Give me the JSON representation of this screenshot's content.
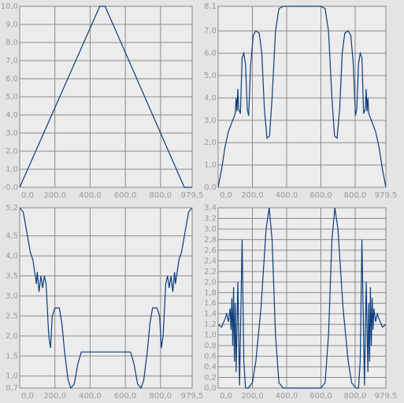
{
  "chart_data": [
    {
      "type": "line",
      "color": "#0b3d7a",
      "grid": true,
      "x": [
        0,
        455,
        485,
        935,
        979.5
      ],
      "values": [
        0,
        10,
        10,
        0,
        0
      ],
      "xlim": [
        0,
        979.5
      ],
      "xticks": [
        {
          "value": 0,
          "label": "0,0"
        },
        {
          "value": 200,
          "label": "200,0"
        },
        {
          "value": 400,
          "label": "400,0"
        },
        {
          "value": 600,
          "label": "600,0"
        },
        {
          "value": 800,
          "label": "800,0"
        },
        {
          "value": 979.5,
          "label": "979,5"
        }
      ],
      "ylim": [
        0,
        10
      ],
      "yticks": [
        {
          "value": 0,
          "label": "-0,0"
        },
        {
          "value": 1,
          "label": "1,0"
        },
        {
          "value": 2,
          "label": "2,0"
        },
        {
          "value": 3,
          "label": "3,0"
        },
        {
          "value": 4,
          "label": "4,0"
        },
        {
          "value": 5,
          "label": "5,0"
        },
        {
          "value": 6,
          "label": "6,0"
        },
        {
          "value": 7,
          "label": "7,0"
        },
        {
          "value": 8,
          "label": "8,0"
        },
        {
          "value": 9,
          "label": "9,0"
        },
        {
          "value": 10,
          "label": "10,0"
        }
      ]
    },
    {
      "type": "line",
      "color": "#0b3d7a",
      "grid": true,
      "x": [
        0,
        20,
        40,
        60,
        85,
        100,
        105,
        110,
        115,
        120,
        130,
        140,
        150,
        160,
        170,
        178,
        190,
        205,
        220,
        240,
        255,
        270,
        285,
        300,
        315,
        335,
        355,
        380,
        599.5,
        624.5,
        644.5,
        664.5,
        679.5,
        694.5,
        709.5,
        724.5,
        739.5,
        759.5,
        774.5,
        789.5,
        801.5,
        809.5,
        819.5,
        829.5,
        839.5,
        849.5,
        859.5,
        864.5,
        869.5,
        874.5,
        879.5,
        894.5,
        919.5,
        939.5,
        959.5,
        979.5
      ],
      "values": [
        0,
        0.8,
        1.8,
        2.5,
        3.0,
        3.3,
        4.0,
        3.4,
        4.4,
        3.5,
        3.3,
        5.8,
        6.0,
        5.5,
        3.5,
        3.2,
        5.5,
        6.8,
        7.0,
        6.9,
        6.0,
        3.5,
        2.2,
        2.3,
        4.0,
        7.0,
        8.0,
        8.1,
        8.1,
        8.0,
        7.0,
        4.0,
        2.3,
        2.2,
        3.5,
        6.0,
        6.9,
        7.0,
        6.8,
        5.5,
        3.2,
        3.5,
        5.5,
        6.0,
        5.8,
        3.3,
        3.5,
        4.4,
        3.4,
        4.0,
        3.3,
        3.0,
        2.5,
        1.8,
        0.8,
        0
      ],
      "xlim": [
        0,
        979.5
      ],
      "xticks": [
        {
          "value": 0,
          "label": "0,0"
        },
        {
          "value": 200,
          "label": "200,0"
        },
        {
          "value": 400,
          "label": "400,0"
        },
        {
          "value": 600,
          "label": "600,0"
        },
        {
          "value": 800,
          "label": "800,0"
        },
        {
          "value": 979.5,
          "label": "979,5"
        }
      ],
      "ylim": [
        0,
        8.1
      ],
      "yticks": [
        {
          "value": 0,
          "label": "0,0"
        },
        {
          "value": 1,
          "label": "1,0"
        },
        {
          "value": 2,
          "label": "2,0"
        },
        {
          "value": 3,
          "label": "3,0"
        },
        {
          "value": 4,
          "label": "4,0"
        },
        {
          "value": 5,
          "label": "5,0"
        },
        {
          "value": 6,
          "label": "6,0"
        },
        {
          "value": 7,
          "label": "7,0"
        },
        {
          "value": 8.1,
          "label": "8,1"
        }
      ]
    },
    {
      "type": "line",
      "color": "#0b3d7a",
      "grid": true,
      "x": [
        0,
        20,
        40,
        60,
        75,
        85,
        95,
        100,
        110,
        120,
        130,
        140,
        150,
        165,
        175,
        185,
        200,
        225,
        240,
        255,
        275,
        290,
        310,
        330,
        350,
        629.5,
        649.5,
        669.5,
        689.5,
        704.5,
        724.5,
        739.5,
        754.5,
        779.5,
        794.5,
        804.5,
        814.5,
        829.5,
        839.5,
        849.5,
        859.5,
        869.5,
        879.5,
        884.5,
        894.5,
        904.5,
        919.5,
        939.5,
        959.5,
        979.5
      ],
      "values": [
        5.2,
        5.1,
        4.6,
        4.1,
        3.9,
        3.6,
        3.3,
        3.6,
        3.1,
        3.5,
        3.2,
        3.5,
        3.3,
        2.0,
        1.7,
        2.5,
        2.7,
        2.7,
        2.3,
        1.6,
        0.9,
        0.7,
        0.8,
        1.3,
        1.6,
        1.6,
        1.3,
        0.8,
        0.7,
        0.9,
        1.6,
        2.3,
        2.7,
        2.7,
        2.5,
        1.7,
        2.0,
        3.3,
        3.5,
        3.2,
        3.5,
        3.1,
        3.6,
        3.3,
        3.6,
        3.9,
        4.1,
        4.6,
        5.1,
        5.2
      ],
      "xlim": [
        0,
        979.5
      ],
      "xticks": [
        {
          "value": 0,
          "label": "0,0"
        },
        {
          "value": 200,
          "label": "200,0"
        },
        {
          "value": 400,
          "label": "400,0"
        },
        {
          "value": 600,
          "label": "600,0"
        },
        {
          "value": 800,
          "label": "800,0"
        },
        {
          "value": 979.5,
          "label": "979,5"
        }
      ],
      "ylim": [
        0.7,
        5.2
      ],
      "yticks": [
        {
          "value": 0.7,
          "label": "0,7"
        },
        {
          "value": 1,
          "label": "1,0"
        },
        {
          "value": 1.5,
          "label": "1,5"
        },
        {
          "value": 2,
          "label": "2,0"
        },
        {
          "value": 2.5,
          "label": "2,5"
        },
        {
          "value": 3,
          "label": "3,0"
        },
        {
          "value": 3.5,
          "label": "3,5"
        },
        {
          "value": 4,
          "label": "4,0"
        },
        {
          "value": 4.5,
          "label": "4,5"
        },
        {
          "value": 5.2,
          "label": "5,2"
        }
      ]
    },
    {
      "type": "line",
      "color": "#0b3d7a",
      "grid": true,
      "x": [
        0,
        20,
        40,
        50,
        60,
        70,
        75,
        80,
        85,
        90,
        95,
        100,
        105,
        115,
        125,
        140,
        150,
        160,
        175,
        200,
        220,
        250,
        280,
        298,
        315,
        335,
        355,
        380,
        599.5,
        624.5,
        644.5,
        664.5,
        681.5,
        699.5,
        729.5,
        759.5,
        779.5,
        804.5,
        819.5,
        829.5,
        839.5,
        854.5,
        864.5,
        874.5,
        879.5,
        884.5,
        889.5,
        894.5,
        899.5,
        904.5,
        909.5,
        919.5,
        929.5,
        939.5,
        959.5,
        979.5
      ],
      "values": [
        1.2,
        1.15,
        1.3,
        1.4,
        1.25,
        1.5,
        1.1,
        1.7,
        0.8,
        1.9,
        0.5,
        1.6,
        0.3,
        2.0,
        0.05,
        2.8,
        0.5,
        0,
        0,
        0.1,
        0.5,
        1.5,
        3.0,
        3.4,
        2.8,
        1.0,
        0.1,
        0,
        0,
        0.1,
        1.0,
        2.8,
        3.4,
        3.0,
        1.5,
        0.5,
        0.1,
        0,
        0,
        0.5,
        2.8,
        0.05,
        2.0,
        0.3,
        1.6,
        0.5,
        1.9,
        0.8,
        1.7,
        1.1,
        1.5,
        1.25,
        1.4,
        1.3,
        1.15,
        1.2
      ],
      "xlim": [
        0,
        979.5
      ],
      "xticks": [
        {
          "value": 0,
          "label": "0,0"
        },
        {
          "value": 200,
          "label": "200,0"
        },
        {
          "value": 400,
          "label": "400,0"
        },
        {
          "value": 600,
          "label": "600,0"
        },
        {
          "value": 800,
          "label": "800,0"
        },
        {
          "value": 979.5,
          "label": "979,5"
        }
      ],
      "ylim": [
        0,
        3.4
      ],
      "yticks": [
        {
          "value": 0,
          "label": "0,0"
        },
        {
          "value": 0.2,
          "label": "0,2"
        },
        {
          "value": 0.4,
          "label": "0,4"
        },
        {
          "value": 0.6,
          "label": "0,6"
        },
        {
          "value": 0.8,
          "label": "0,8"
        },
        {
          "value": 1,
          "label": "1,0"
        },
        {
          "value": 1.2,
          "label": "1,2"
        },
        {
          "value": 1.4,
          "label": "1,4"
        },
        {
          "value": 1.6,
          "label": "1,6"
        },
        {
          "value": 1.8,
          "label": "1,8"
        },
        {
          "value": 2,
          "label": "2,0"
        },
        {
          "value": 2.2,
          "label": "2,2"
        },
        {
          "value": 2.4,
          "label": "2,4"
        },
        {
          "value": 2.6,
          "label": "2,6"
        },
        {
          "value": 2.8,
          "label": "2,8"
        },
        {
          "value": 3,
          "label": "3,0"
        },
        {
          "value": 3.2,
          "label": "3,2"
        },
        {
          "value": 3.4,
          "label": "3,4"
        }
      ]
    }
  ]
}
